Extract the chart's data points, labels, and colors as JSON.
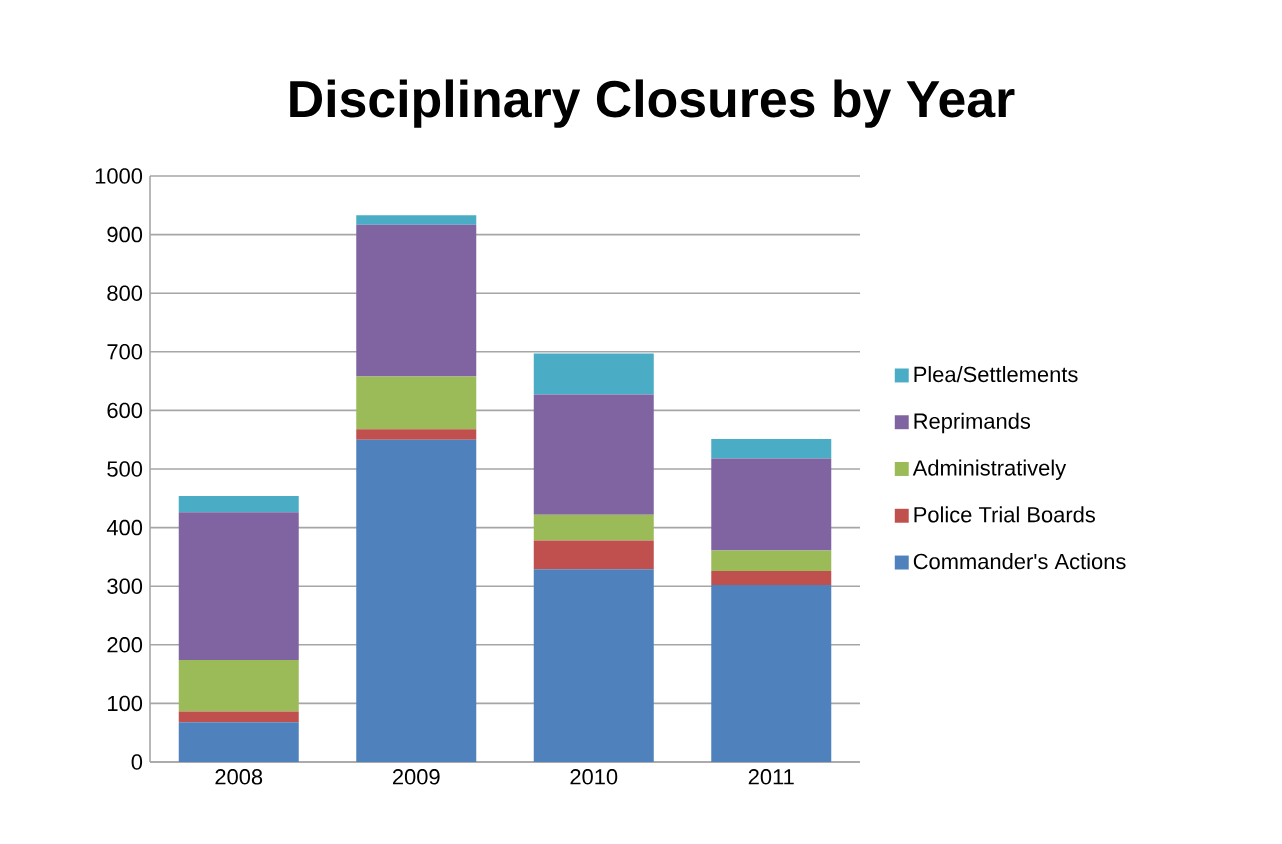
{
  "chart_data": {
    "type": "bar",
    "title": "Disciplinary Closures by Year",
    "categories": [
      "2008",
      "2009",
      "2010",
      "2011"
    ],
    "stacked": true,
    "series": [
      {
        "name": "Commander's Actions",
        "color": "#4f81bd",
        "values": [
          68,
          550,
          329,
          302
        ]
      },
      {
        "name": "Police Trial Boards",
        "color": "#c0504d",
        "values": [
          18,
          18,
          49,
          24
        ]
      },
      {
        "name": "Administratively",
        "color": "#9bbb59",
        "values": [
          88,
          90,
          44,
          35
        ]
      },
      {
        "name": "Reprimands",
        "color": "#8064a2",
        "values": [
          252,
          259,
          205,
          157
        ]
      },
      {
        "name": "Plea/Settlements",
        "color": "#4bacc6",
        "values": [
          28,
          16,
          70,
          33
        ]
      }
    ],
    "ylim": [
      0,
      1000
    ],
    "yticks": [
      0,
      100,
      200,
      300,
      400,
      500,
      600,
      700,
      800,
      900,
      1000
    ],
    "grid": "y",
    "legend": "right"
  }
}
